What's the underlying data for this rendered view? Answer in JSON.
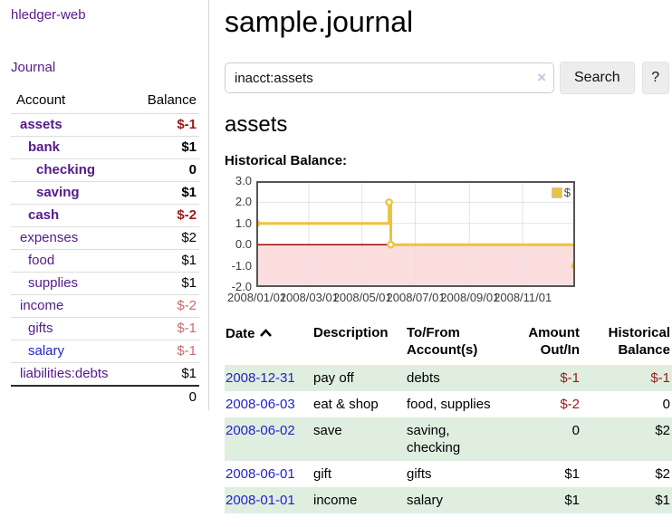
{
  "sidebar": {
    "brand": "hledger-web",
    "nav": {
      "journal": "Journal"
    },
    "table": {
      "account_header": "Account",
      "balance_header": "Balance",
      "accounts": [
        {
          "name": "assets",
          "level": 1,
          "bold": true,
          "balance": "$-1",
          "balance_class": "neg",
          "link_class": "purple"
        },
        {
          "name": "bank",
          "level": 2,
          "bold": true,
          "balance": "$1",
          "balance_class": "",
          "link_class": "purple"
        },
        {
          "name": "checking",
          "level": 3,
          "bold": true,
          "balance": "0",
          "balance_class": "",
          "link_class": "purple"
        },
        {
          "name": "saving",
          "level": 3,
          "bold": true,
          "balance": "$1",
          "balance_class": "",
          "link_class": "purple"
        },
        {
          "name": "cash",
          "level": 2,
          "bold": true,
          "balance": "$-2",
          "balance_class": "neg",
          "link_class": "purple"
        },
        {
          "name": "expenses",
          "level": 1,
          "bold": false,
          "balance": "$2",
          "balance_class": "",
          "link_class": "purple"
        },
        {
          "name": "food",
          "level": 2,
          "bold": false,
          "balance": "$1",
          "balance_class": "",
          "link_class": "purple"
        },
        {
          "name": "supplies",
          "level": 2,
          "bold": false,
          "balance": "$1",
          "balance_class": "",
          "link_class": "purple"
        },
        {
          "name": "income",
          "level": 1,
          "bold": false,
          "balance": "$-2",
          "balance_class": "neg-soft",
          "link_class": "purple"
        },
        {
          "name": "gifts",
          "level": 2,
          "bold": false,
          "balance": "$-1",
          "balance_class": "neg-soft",
          "link_class": "purple"
        },
        {
          "name": "salary",
          "level": 2,
          "bold": false,
          "balance": "$-1",
          "balance_class": "neg-soft",
          "link_class": "blue"
        },
        {
          "name": "liabilities:debts",
          "level": 1,
          "bold": false,
          "balance": "$1",
          "balance_class": "",
          "link_class": "purple"
        }
      ],
      "total": "0"
    }
  },
  "header": {
    "title": "sample.journal"
  },
  "search": {
    "value": "inacct:assets",
    "clear_label": "×",
    "button": "Search",
    "help_button": "?"
  },
  "account_page": {
    "title": "assets",
    "chart_heading": "Historical Balance:"
  },
  "chart_data": {
    "type": "line",
    "style": "step",
    "title": "Historical Balance",
    "series": [
      {
        "name": "$",
        "points": [
          [
            "2008-01-01",
            1
          ],
          [
            "2008-06-01",
            2
          ],
          [
            "2008-06-03",
            0
          ],
          [
            "2008-12-31",
            -1
          ]
        ]
      }
    ],
    "x_range": [
      "2008-01-01",
      "2008-12-31"
    ],
    "x_ticks": [
      "2008/01/01",
      "2008/03/01",
      "2008/05/01",
      "2008/07/01",
      "2008/09/01",
      "2008/11/01"
    ],
    "y_ticks": [
      "3.0",
      "2.0",
      "1.0",
      "0.0",
      "-1.0",
      "-2.0"
    ],
    "ylim": [
      -2,
      3
    ],
    "grid": true,
    "legend": {
      "label": "$",
      "position": "top-right"
    },
    "colors": {
      "line": "#edc240",
      "marker_fill": "#ffffff",
      "negative_region": "#fcdede",
      "zero_line": "#a40000",
      "grid": "#e3e3e3",
      "border": "#555555"
    }
  },
  "register": {
    "headers": {
      "date": "Date",
      "description": "Description",
      "accounts": "To/From Account(s)",
      "amount": "Amount Out/In",
      "balance": "Historical Balance"
    },
    "rows": [
      {
        "date": "2008-12-31",
        "description": "pay off",
        "accounts": "debts",
        "amount": "$-1",
        "amount_class": "neg",
        "balance": "$-1",
        "balance_class": "neg"
      },
      {
        "date": "2008-06-03",
        "description": "eat & shop",
        "accounts": "food, supplies",
        "amount": "$-2",
        "amount_class": "neg",
        "balance": "0",
        "balance_class": ""
      },
      {
        "date": "2008-06-02",
        "description": "save",
        "accounts": "saving, checking",
        "amount": "0",
        "amount_class": "",
        "balance": "$2",
        "balance_class": ""
      },
      {
        "date": "2008-06-01",
        "description": "gift",
        "accounts": "gifts",
        "amount": "$1",
        "amount_class": "",
        "balance": "$2",
        "balance_class": ""
      },
      {
        "date": "2008-01-01",
        "description": "income",
        "accounts": "salary",
        "amount": "$1",
        "amount_class": "",
        "balance": "$1",
        "balance_class": ""
      }
    ]
  }
}
